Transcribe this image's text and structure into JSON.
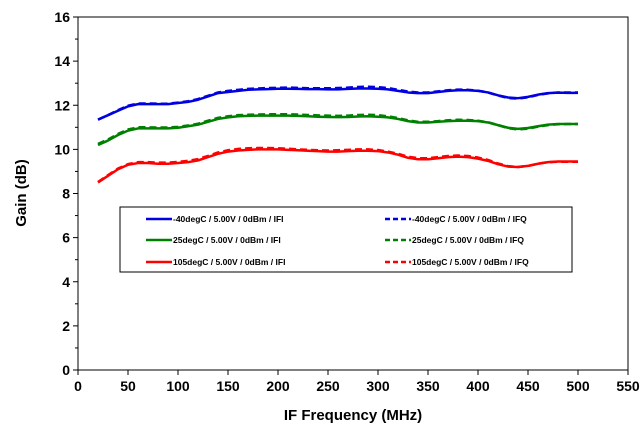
{
  "chart_data": {
    "type": "line",
    "title": "",
    "xlabel": "IF Frequency (MHz)",
    "ylabel": "Gain (dB)",
    "xlim": [
      0,
      550
    ],
    "ylim": [
      0,
      16
    ],
    "xticks": [
      0,
      50,
      100,
      150,
      200,
      250,
      300,
      350,
      400,
      450,
      500,
      550
    ],
    "yticks": [
      0,
      2,
      4,
      6,
      8,
      10,
      12,
      14,
      16
    ],
    "grid": false,
    "legend_position": "center-left, inside plot",
    "x": [
      20,
      30,
      40,
      50,
      60,
      70,
      80,
      90,
      100,
      110,
      120,
      130,
      140,
      150,
      160,
      170,
      180,
      190,
      200,
      210,
      220,
      230,
      240,
      250,
      260,
      270,
      280,
      290,
      300,
      310,
      320,
      330,
      340,
      350,
      360,
      370,
      380,
      390,
      400,
      410,
      420,
      430,
      440,
      450,
      460,
      470,
      480,
      490,
      500
    ],
    "series": [
      {
        "name": "-40degC / 5.00V / 0dBm / IFI",
        "color": "#0000e0",
        "dash": "solid",
        "values": [
          11.35,
          11.55,
          11.75,
          11.95,
          12.05,
          12.05,
          12.05,
          12.05,
          12.1,
          12.15,
          12.25,
          12.4,
          12.55,
          12.6,
          12.65,
          12.7,
          12.72,
          12.73,
          12.75,
          12.75,
          12.74,
          12.73,
          12.73,
          12.72,
          12.72,
          12.74,
          12.76,
          12.76,
          12.75,
          12.72,
          12.65,
          12.58,
          12.55,
          12.55,
          12.6,
          12.65,
          12.68,
          12.68,
          12.65,
          12.58,
          12.45,
          12.35,
          12.32,
          12.38,
          12.48,
          12.55,
          12.57,
          12.56,
          12.56
        ]
      },
      {
        "name": "-40degC / 5.00V / 0dBm / IFQ",
        "color": "#0000e0",
        "dash": "dashed",
        "values": [
          11.35,
          11.55,
          11.78,
          11.98,
          12.08,
          12.08,
          12.07,
          12.07,
          12.12,
          12.18,
          12.28,
          12.43,
          12.58,
          12.65,
          12.7,
          12.74,
          12.76,
          12.78,
          12.79,
          12.8,
          12.79,
          12.77,
          12.77,
          12.77,
          12.78,
          12.8,
          12.83,
          12.84,
          12.82,
          12.78,
          12.7,
          12.62,
          12.58,
          12.58,
          12.63,
          12.68,
          12.71,
          12.7,
          12.66,
          12.58,
          12.44,
          12.33,
          12.3,
          12.36,
          12.47,
          12.54,
          12.58,
          12.58,
          12.58
        ]
      },
      {
        "name": "25degC / 5.00V / 0dBm / IFI",
        "color": "#008000",
        "dash": "solid",
        "values": [
          10.2,
          10.4,
          10.65,
          10.85,
          10.95,
          10.95,
          10.95,
          10.95,
          10.98,
          11.05,
          11.12,
          11.25,
          11.38,
          11.45,
          11.5,
          11.52,
          11.53,
          11.53,
          11.53,
          11.53,
          11.52,
          11.5,
          11.48,
          11.47,
          11.46,
          11.47,
          11.49,
          11.5,
          11.48,
          11.45,
          11.38,
          11.28,
          11.22,
          11.22,
          11.25,
          11.28,
          11.3,
          11.3,
          11.28,
          11.22,
          11.1,
          10.98,
          10.93,
          10.97,
          11.05,
          11.12,
          11.15,
          11.15,
          11.15
        ]
      },
      {
        "name": "25degC / 5.00V / 0dBm / IFQ",
        "color": "#008000",
        "dash": "dashed",
        "values": [
          10.25,
          10.45,
          10.7,
          10.9,
          11.0,
          11.0,
          10.99,
          10.99,
          11.02,
          11.08,
          11.16,
          11.3,
          11.43,
          11.5,
          11.55,
          11.57,
          11.58,
          11.59,
          11.59,
          11.59,
          11.58,
          11.56,
          11.54,
          11.53,
          11.52,
          11.53,
          11.56,
          11.57,
          11.55,
          11.5,
          11.42,
          11.32,
          11.25,
          11.25,
          11.28,
          11.32,
          11.34,
          11.33,
          11.3,
          11.23,
          11.1,
          10.96,
          10.9,
          10.94,
          11.03,
          11.1,
          11.14,
          11.15,
          11.15
        ]
      },
      {
        "name": "105degC / 5.00V / 0dBm / IFI",
        "color": "#ff0000",
        "dash": "solid",
        "values": [
          8.5,
          8.8,
          9.1,
          9.3,
          9.38,
          9.38,
          9.35,
          9.35,
          9.38,
          9.42,
          9.5,
          9.65,
          9.8,
          9.9,
          9.95,
          9.98,
          10.0,
          10.0,
          10.0,
          9.98,
          9.96,
          9.94,
          9.92,
          9.9,
          9.9,
          9.92,
          9.94,
          9.94,
          9.92,
          9.86,
          9.76,
          9.62,
          9.55,
          9.55,
          9.6,
          9.65,
          9.67,
          9.65,
          9.58,
          9.48,
          9.33,
          9.22,
          9.2,
          9.25,
          9.35,
          9.42,
          9.45,
          9.45,
          9.45
        ]
      },
      {
        "name": "105degC / 5.00V / 0dBm / IFQ",
        "color": "#ff0000",
        "dash": "dashed",
        "values": [
          8.52,
          8.83,
          9.13,
          9.33,
          9.42,
          9.42,
          9.4,
          9.4,
          9.43,
          9.48,
          9.56,
          9.7,
          9.86,
          9.96,
          10.02,
          10.05,
          10.06,
          10.06,
          10.05,
          10.03,
          10.0,
          9.98,
          9.96,
          9.95,
          9.96,
          9.98,
          10.0,
          10.0,
          9.97,
          9.9,
          9.8,
          9.67,
          9.6,
          9.6,
          9.65,
          9.7,
          9.72,
          9.7,
          9.63,
          9.52,
          9.36,
          9.24,
          9.2,
          9.25,
          9.35,
          9.42,
          9.44,
          9.44,
          9.44
        ]
      }
    ]
  }
}
